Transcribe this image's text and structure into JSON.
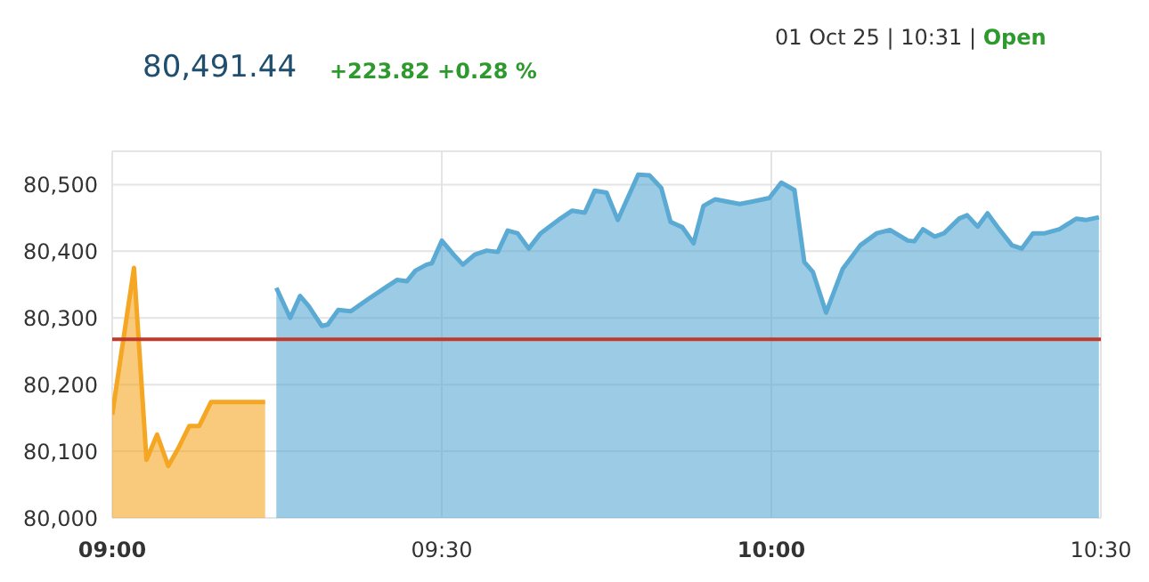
{
  "chart_data": {
    "type": "area",
    "title": "80,491.44",
    "subtitle": "+223.82 +0.28 %",
    "annotations": [
      "01 Oct 25 | 10:31 |",
      "Open"
    ],
    "series": [
      {
        "color": "#f5a623",
        "x": [
          9,
          9.033,
          9.052,
          9.068,
          9.085,
          9.1,
          9.117,
          9.132,
          9.15,
          9.232
        ],
        "values": [
          80155,
          80375,
          80087,
          80125,
          80078,
          80104,
          80138,
          80138,
          80174,
          80174
        ]
      },
      {
        "color": "#5aaad3",
        "x": [
          9.249,
          9.27,
          9.285,
          9.298,
          9.318,
          9.327,
          9.343,
          9.362,
          9.388,
          9.415,
          9.432,
          9.447,
          9.46,
          9.477,
          9.485,
          9.5,
          9.518,
          9.532,
          9.55,
          9.568,
          9.585,
          9.6,
          9.615,
          9.632,
          9.65,
          9.677,
          9.698,
          9.717,
          9.732,
          9.75,
          9.767,
          9.798,
          9.815,
          9.833,
          9.847,
          9.865,
          9.882,
          9.897,
          9.915,
          9.952,
          9.973,
          9.997,
          10.015,
          10.035,
          10.05,
          10.063,
          10.083,
          10.108,
          10.135,
          10.16,
          10.18,
          10.207,
          10.217,
          10.23,
          10.248,
          10.262,
          10.285,
          10.297,
          10.313,
          10.328,
          10.345,
          10.365,
          10.38,
          10.397,
          10.415,
          10.437,
          10.463,
          10.478,
          10.497
        ],
        "values": [
          80345,
          80300,
          80333,
          80318,
          80288,
          80290,
          80312,
          80310,
          80328,
          80346,
          80357,
          80355,
          80371,
          80380,
          80382,
          80416,
          80395,
          80380,
          80395,
          80401,
          80399,
          80431,
          80427,
          80404,
          80427,
          80447,
          80461,
          80458,
          80491,
          80488,
          80447,
          80515,
          80514,
          80495,
          80444,
          80436,
          80412,
          80468,
          80478,
          80471,
          80475,
          80480,
          80503,
          80492,
          80384,
          80369,
          80308,
          80373,
          80409,
          80427,
          80432,
          80416,
          80415,
          80433,
          80422,
          80427,
          80449,
          80454,
          80437,
          80457,
          80434,
          80409,
          80404,
          80427,
          80427,
          80433,
          80449,
          80447,
          80451
        ]
      }
    ],
    "xlim": [
      9,
      10.5
    ],
    "xticks": [
      {
        "value": 9,
        "label": "09:00"
      },
      {
        "value": 9.5,
        "label": "09:30"
      },
      {
        "value": 10,
        "label": "10:00"
      },
      {
        "value": 10.5,
        "label": "10:30"
      }
    ],
    "ylim": [
      80000,
      80550
    ],
    "yticks": [
      {
        "value": 80000,
        "label": "80,000"
      },
      {
        "value": 80100,
        "label": "80,100"
      },
      {
        "value": 80200,
        "label": "80,200"
      },
      {
        "value": 80300,
        "label": "80,300"
      },
      {
        "value": 80400,
        "label": "80,400"
      },
      {
        "value": 80500,
        "label": "80,500"
      }
    ],
    "ref_lines": [
      {
        "axis": "y",
        "value": 80268,
        "color": "#c0392b"
      }
    ],
    "grid": true,
    "legend": false
  }
}
